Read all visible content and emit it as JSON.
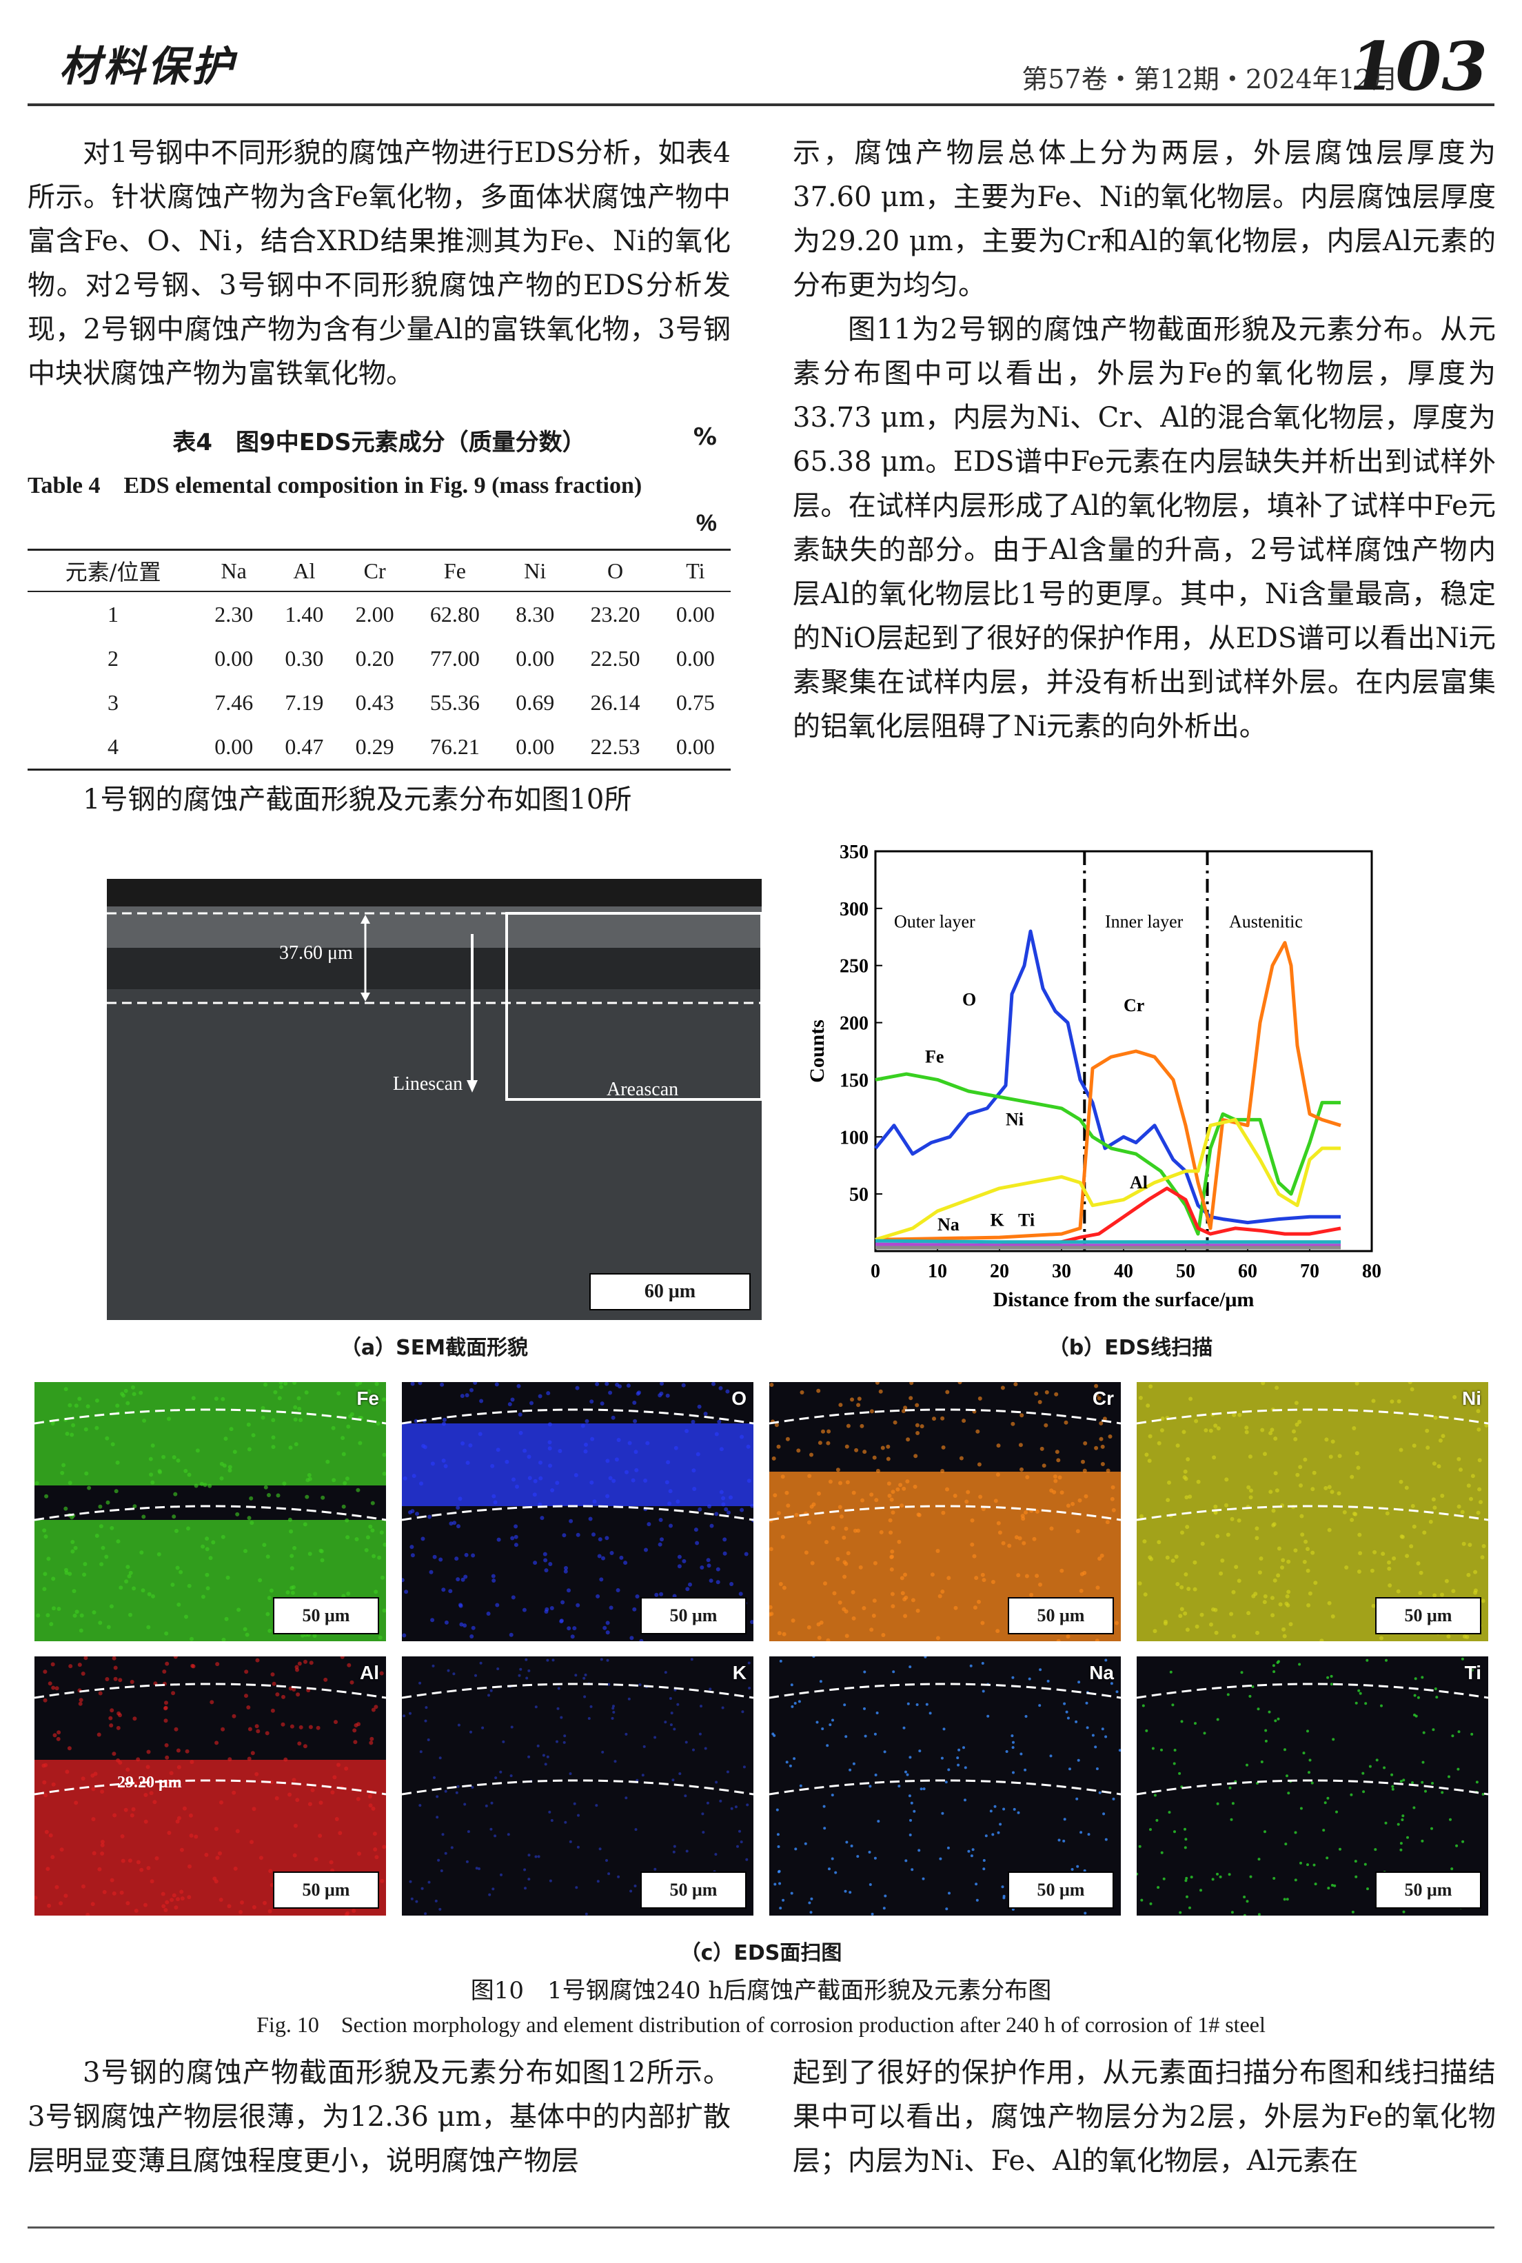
{
  "header": {
    "journal_logo": "材料保护",
    "issue": "第57卷・第12期・2024年12月",
    "page_number": "103"
  },
  "left_col_top": [
    "对1号钢中不同形貌的腐蚀产物进行EDS分析，如表4所示。针状腐蚀产物为含Fe氧化物，多面体状腐蚀产物中富含Fe、O、Ni，结合XRD结果推测其为Fe、Ni的氧化物。对2号钢、3号钢中不同形貌腐蚀产物的EDS分析发现，2号钢中腐蚀产物为含有少量Al的富铁氧化物，3号钢中块状腐蚀产物为富铁氧化物。"
  ],
  "table4": {
    "caption_cn": "表4　图9中EDS元素成分（质量分数）",
    "unit": "%",
    "caption_en": "Table 4　EDS elemental composition in Fig. 9 (mass fraction)",
    "headers": [
      "元素/位置",
      "Na",
      "Al",
      "Cr",
      "Fe",
      "Ni",
      "O",
      "Ti"
    ],
    "rows": [
      [
        "1",
        "2.30",
        "1.40",
        "2.00",
        "62.80",
        "8.30",
        "23.20",
        "0.00"
      ],
      [
        "2",
        "0.00",
        "0.30",
        "0.20",
        "77.00",
        "0.00",
        "22.50",
        "0.00"
      ],
      [
        "3",
        "7.46",
        "7.19",
        "0.43",
        "55.36",
        "0.69",
        "26.14",
        "0.75"
      ],
      [
        "4",
        "0.00",
        "0.47",
        "0.29",
        "76.21",
        "0.00",
        "22.53",
        "0.00"
      ]
    ]
  },
  "left_col_after_table": "1号钢的腐蚀产截面形貌及元素分布如图10所",
  "right_col_top": [
    "示，腐蚀产物层总体上分为两层，外层腐蚀层厚度为37.60 μm，主要为Fe、Ni的氧化物层。内层腐蚀层厚度为29.20 μm，主要为Cr和Al的氧化物层，内层Al元素的分布更为均匀。",
    "图11为2号钢的腐蚀产物截面形貌及元素分布。从元素分布图中可以看出，外层为Fe的氧化物层，厚度为33.73 μm，内层为Ni、Cr、Al的混合氧化物层，厚度为65.38 μm。EDS谱中Fe元素在内层缺失并析出到试样外层。在试样内层形成了Al的氧化物层，填补了试样中Fe元素缺失的部分。由于Al含量的升高，2号试样腐蚀产物内层Al的氧化物层比1号的更厚。其中，Ni含量最高，稳定的NiO层起到了很好的保护作用，从EDS谱可以看出Ni元素聚集在试样内层，并没有析出到试样外层。在内层富集的铝氧化层阻碍了Ni元素的向外析出。"
  ],
  "fig_sem": {
    "thickness": "37.60 μm",
    "linescan": "Linescan",
    "areascan": "Areascan",
    "scale": "60 μm",
    "caption": "（a）SEM截面形貌"
  },
  "chart_data": {
    "type": "line",
    "xlabel": "Distance from the surface/μm",
    "ylabel": "Counts",
    "xlim": [
      0,
      80
    ],
    "ylim": [
      0,
      350
    ],
    "xticks": [
      "0",
      "10",
      "20",
      "30",
      "40",
      "50",
      "60",
      "70",
      "80"
    ],
    "yticks": [
      "50",
      "100",
      "150",
      "200",
      "250",
      "300",
      "350"
    ],
    "region_labels": [
      "Outer layer",
      "Inner layer",
      "Austenitic"
    ],
    "boundaries": [
      33.7,
      53.5
    ],
    "series": [
      {
        "name": "O",
        "color": "#1f3fe0",
        "x": [
          0,
          3,
          6,
          9,
          12,
          15,
          18,
          21,
          22,
          24,
          25,
          27,
          29,
          31,
          33,
          35,
          37,
          40,
          42,
          45,
          48,
          50,
          52,
          54,
          56,
          60,
          65,
          70,
          75
        ],
        "y": [
          90,
          110,
          85,
          95,
          100,
          120,
          125,
          145,
          225,
          250,
          280,
          230,
          210,
          200,
          150,
          130,
          90,
          100,
          95,
          110,
          80,
          70,
          40,
          30,
          28,
          25,
          28,
          30,
          30
        ]
      },
      {
        "name": "Fe",
        "color": "#38d020",
        "x": [
          0,
          5,
          10,
          15,
          20,
          25,
          30,
          33,
          35,
          38,
          42,
          46,
          50,
          52,
          54,
          56,
          58,
          62,
          65,
          67,
          70,
          72,
          75
        ],
        "y": [
          150,
          155,
          150,
          140,
          135,
          130,
          125,
          115,
          100,
          90,
          85,
          70,
          40,
          15,
          90,
          120,
          115,
          115,
          60,
          50,
          95,
          130,
          130
        ]
      },
      {
        "name": "Cr",
        "color": "#ff7a10",
        "x": [
          0,
          20,
          30,
          33,
          35,
          38,
          42,
          45,
          48,
          50,
          52,
          54,
          56,
          60,
          62,
          64,
          66,
          67,
          68,
          70,
          72,
          75
        ],
        "y": [
          10,
          12,
          15,
          20,
          160,
          170,
          175,
          170,
          150,
          110,
          60,
          20,
          115,
          110,
          200,
          250,
          270,
          250,
          180,
          120,
          115,
          110
        ]
      },
      {
        "name": "Ni",
        "color": "#f2ea20",
        "x": [
          0,
          3,
          6,
          10,
          15,
          20,
          25,
          30,
          33,
          35,
          40,
          45,
          50,
          52,
          54,
          58,
          62,
          65,
          68,
          70,
          72,
          75
        ],
        "y": [
          10,
          15,
          20,
          35,
          45,
          55,
          60,
          65,
          60,
          40,
          45,
          60,
          70,
          70,
          110,
          115,
          80,
          50,
          40,
          80,
          90,
          90
        ]
      },
      {
        "name": "Al",
        "color": "#ff2020",
        "x": [
          0,
          20,
          30,
          33,
          36,
          40,
          44,
          47,
          50,
          52,
          54,
          58,
          62,
          66,
          70,
          75
        ],
        "y": [
          5,
          5,
          8,
          12,
          15,
          30,
          45,
          55,
          45,
          20,
          15,
          20,
          18,
          15,
          15,
          20
        ]
      },
      {
        "name": "Na",
        "color": "#b04ad0",
        "x": [
          0,
          20,
          40,
          60,
          75
        ],
        "y": [
          6,
          5,
          5,
          5,
          5
        ]
      },
      {
        "name": "K",
        "color": "#20b0c0",
        "x": [
          0,
          20,
          40,
          60,
          75
        ],
        "y": [
          9,
          8,
          8,
          8,
          8
        ]
      },
      {
        "name": "Ti",
        "color": "#8a8a8a",
        "x": [
          0,
          20,
          40,
          60,
          75
        ],
        "y": [
          3,
          3,
          3,
          3,
          3
        ]
      }
    ],
    "caption": "（b）EDS线扫描"
  },
  "maps": {
    "items": [
      {
        "label": "Fe",
        "color": "#3fcf22"
      },
      {
        "label": "O",
        "color": "#2a3cff"
      },
      {
        "label": "Cr",
        "color": "#ff8a1a"
      },
      {
        "label": "Ni",
        "color": "#d6d61e"
      },
      {
        "label": "Al",
        "color": "#e02020"
      },
      {
        "label": "K",
        "color": "#2030a0"
      },
      {
        "label": "Na",
        "color": "#3a8cff"
      },
      {
        "label": "Ti",
        "color": "#2bd02b"
      }
    ],
    "scale": "50 μm",
    "al_thickness": "29.20 μm",
    "caption": "（c）EDS面扫图"
  },
  "figure10": {
    "caption_cn": "图10　1号钢腐蚀240 h后腐蚀产截面形貌及元素分布图",
    "caption_en": "Fig. 10　Section morphology and element distribution of corrosion production after 240 h of corrosion of 1# steel"
  },
  "left_col_bottom": "3号钢的腐蚀产物截面形貌及元素分布如图12所示。3号钢腐蚀产物层很薄，为12.36 μm，基体中的内部扩散层明显变薄且腐蚀程度更小，说明腐蚀产物层",
  "right_col_bottom": "起到了很好的保护作用，从元素面扫描分布图和线扫描结果中可以看出，腐蚀产物层分为2层，外层为Fe的氧化物层；内层为Ni、Fe、Al的氧化物层，Al元素在"
}
